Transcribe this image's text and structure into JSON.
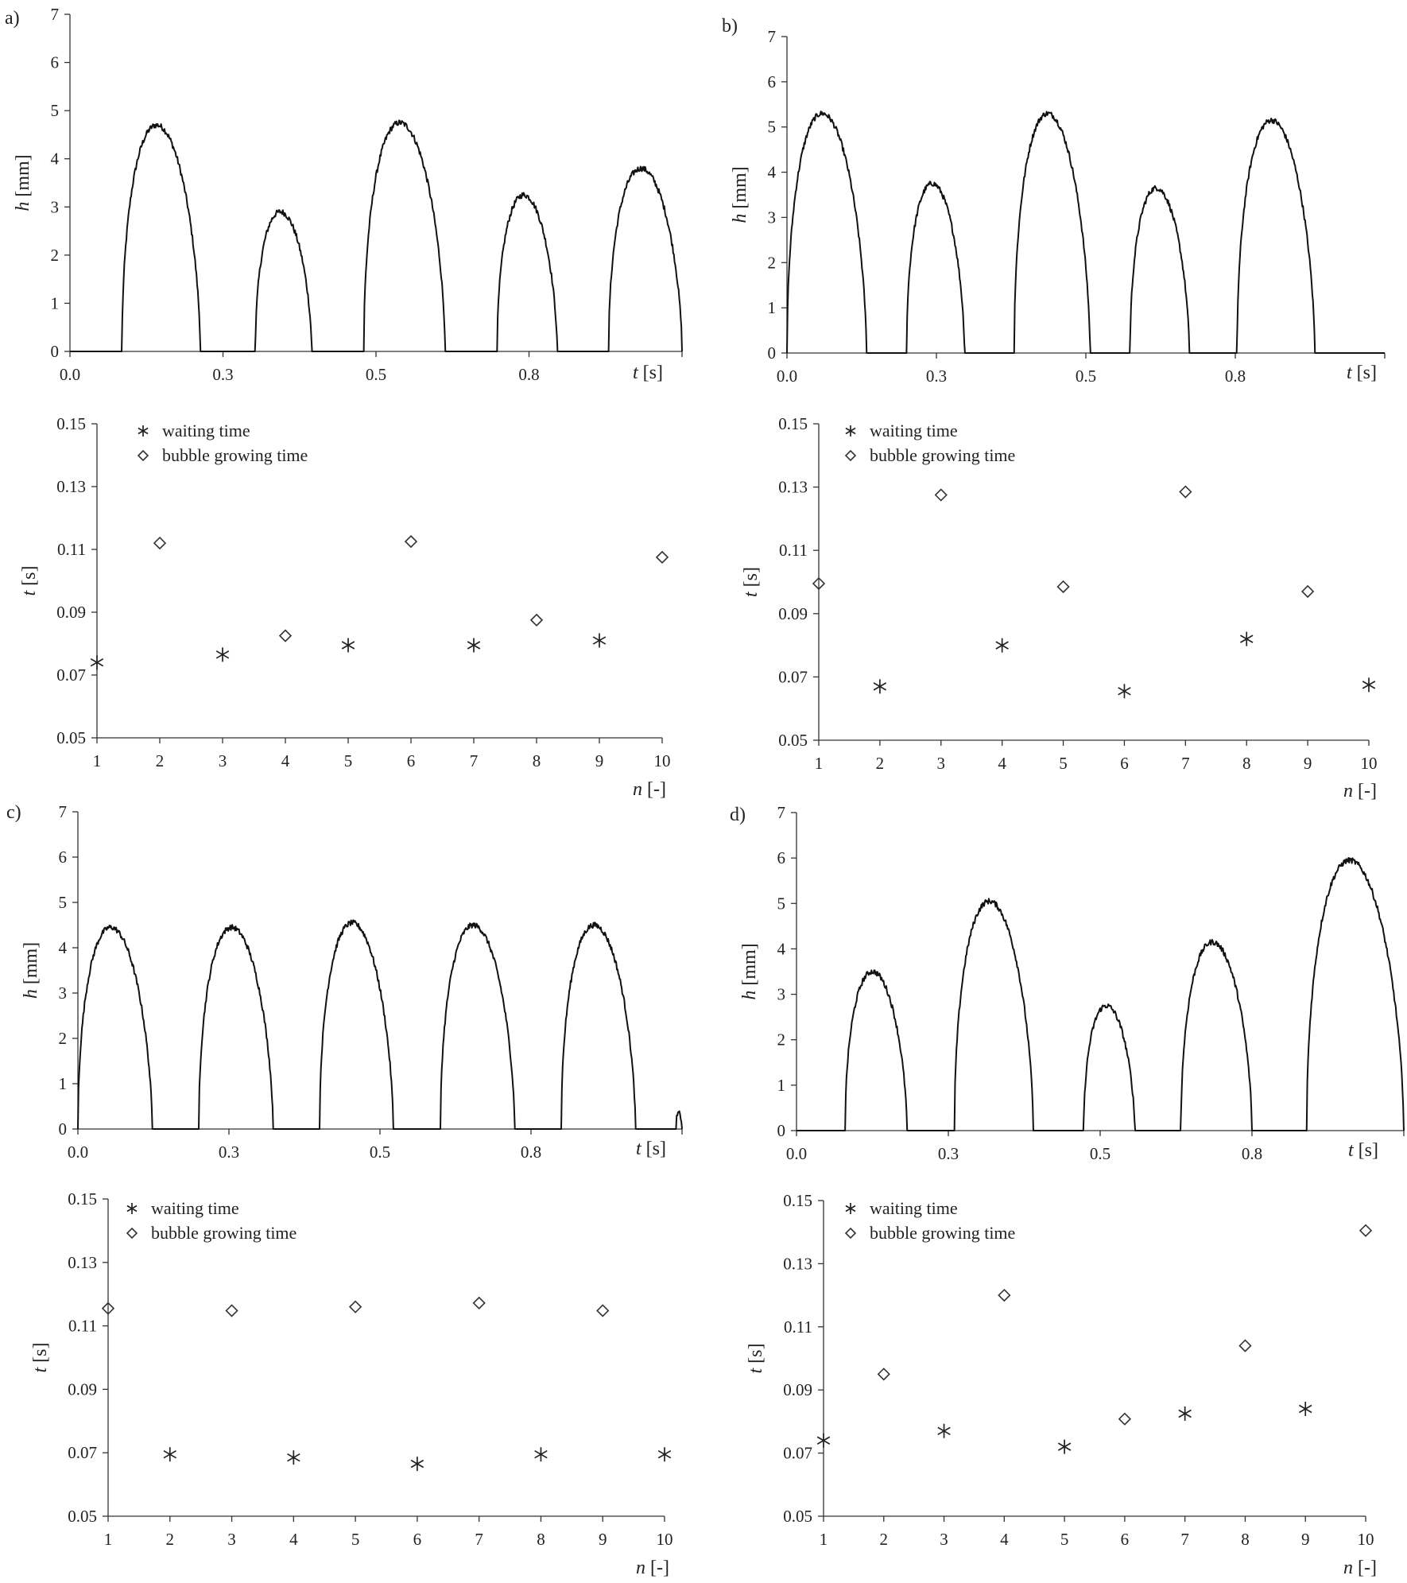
{
  "chart_data": [
    {
      "type": "line",
      "panel_label": "a)",
      "xlabel_var": "t",
      "xlabel_unit": " [s]",
      "ylabel_var": "h",
      "ylabel_unit": " [mm]",
      "xlim": [
        0,
        1.0
      ],
      "ylim": [
        0,
        7
      ],
      "x_ticks": [
        0.0,
        0.25,
        0.5,
        0.75
      ],
      "x_tick_labels": [
        "0.0",
        "0.3",
        "0.5",
        "0.8"
      ],
      "y_ticks": [
        0,
        1,
        2,
        3,
        4,
        5,
        6,
        7
      ],
      "y_tick_labels": [
        "0",
        "1",
        "2",
        "3",
        "4",
        "5",
        "6",
        "7"
      ],
      "series": [
        {
          "bubbles": [
            {
              "start": 0.085,
              "end": 0.213,
              "peak": 4.7
            },
            {
              "start": 0.303,
              "end": 0.395,
              "peak": 2.9
            },
            {
              "start": 0.48,
              "end": 0.613,
              "peak": 4.75
            },
            {
              "start": 0.698,
              "end": 0.796,
              "peak": 3.25
            },
            {
              "start": 0.88,
              "end": 1.0,
              "peak": 3.8
            }
          ]
        }
      ]
    },
    {
      "type": "scatter",
      "xlabel_var": "n",
      "xlabel_unit": " [-]",
      "ylabel_var": "t",
      "ylabel_unit": " [s]",
      "xlim": [
        1,
        10
      ],
      "ylim": [
        0.05,
        0.15
      ],
      "x_ticks": [
        1,
        2,
        3,
        4,
        5,
        6,
        7,
        8,
        9,
        10
      ],
      "x_tick_labels": [
        "1",
        "2",
        "3",
        "4",
        "5",
        "6",
        "7",
        "8",
        "9",
        "10"
      ],
      "y_ticks": [
        0.05,
        0.07,
        0.09,
        0.11,
        0.13,
        0.15
      ],
      "y_tick_labels": [
        "0.05",
        "0.07",
        "0.09",
        "0.11",
        "0.13",
        "0.15"
      ],
      "legend_position": "top-left",
      "series": [
        {
          "name": "waiting time",
          "marker": "asterisk",
          "x": [
            1,
            3,
            5,
            7,
            9
          ],
          "y": [
            0.074,
            0.0765,
            0.0795,
            0.0795,
            0.081
          ]
        },
        {
          "name": "bubble growing time",
          "marker": "diamond",
          "x": [
            2,
            4,
            6,
            8,
            10
          ],
          "y": [
            0.112,
            0.0825,
            0.1125,
            0.0875,
            0.1075
          ]
        }
      ]
    },
    {
      "type": "line",
      "panel_label": "b)",
      "xlabel_var": "t",
      "xlabel_unit": " [s]",
      "ylabel_var": "h",
      "ylabel_unit": " [mm]",
      "xlim": [
        0,
        1.0
      ],
      "ylim": [
        0,
        7
      ],
      "x_ticks": [
        0.0,
        0.25,
        0.5,
        0.75
      ],
      "x_tick_labels": [
        "0.0",
        "0.3",
        "0.5",
        "0.8"
      ],
      "y_ticks": [
        0,
        1,
        2,
        3,
        4,
        5,
        6,
        7
      ],
      "y_tick_labels": [
        "0",
        "1",
        "2",
        "3",
        "4",
        "5",
        "6",
        "7"
      ],
      "series": [
        {
          "bubbles": [
            {
              "start": 0.0,
              "end": 0.133,
              "peak": 5.3
            },
            {
              "start": 0.2,
              "end": 0.297,
              "peak": 3.75
            },
            {
              "start": 0.38,
              "end": 0.507,
              "peak": 5.3
            },
            {
              "start": 0.574,
              "end": 0.673,
              "peak": 3.65
            },
            {
              "start": 0.753,
              "end": 0.883,
              "peak": 5.15
            }
          ]
        }
      ]
    },
    {
      "type": "scatter",
      "xlabel_var": "n",
      "xlabel_unit": " [-]",
      "ylabel_var": "t",
      "ylabel_unit": " [s]",
      "xlim": [
        1,
        10
      ],
      "ylim": [
        0.05,
        0.15
      ],
      "x_ticks": [
        1,
        2,
        3,
        4,
        5,
        6,
        7,
        8,
        9,
        10
      ],
      "x_tick_labels": [
        "1",
        "2",
        "3",
        "4",
        "5",
        "6",
        "7",
        "8",
        "9",
        "10"
      ],
      "y_ticks": [
        0.05,
        0.07,
        0.09,
        0.11,
        0.13,
        0.15
      ],
      "y_tick_labels": [
        "0.05",
        "0.07",
        "0.09",
        "0.11",
        "0.13",
        "0.15"
      ],
      "legend_position": "top-left",
      "series": [
        {
          "name": "waiting time",
          "marker": "asterisk",
          "x": [
            2,
            4,
            6,
            8,
            10
          ],
          "y": [
            0.067,
            0.08,
            0.0655,
            0.082,
            0.0675
          ]
        },
        {
          "name": "bubble growing time",
          "marker": "diamond",
          "x": [
            1,
            3,
            5,
            7,
            9
          ],
          "y": [
            0.0995,
            0.1275,
            0.0985,
            0.1285,
            0.097
          ]
        }
      ]
    },
    {
      "type": "line",
      "panel_label": "c)",
      "xlabel_var": "t",
      "xlabel_unit": " [s]",
      "ylabel_var": "h",
      "ylabel_unit": " [mm]",
      "xlim": [
        0,
        1.0
      ],
      "ylim": [
        0,
        7
      ],
      "x_ticks": [
        0.0,
        0.25,
        0.5,
        0.75
      ],
      "x_tick_labels": [
        "0.0",
        "0.3",
        "0.5",
        "0.8"
      ],
      "y_ticks": [
        0,
        1,
        2,
        3,
        4,
        5,
        6,
        7
      ],
      "y_tick_labels": [
        "0",
        "1",
        "2",
        "3",
        "4",
        "5",
        "6",
        "7"
      ],
      "series": [
        {
          "bubbles": [
            {
              "start": 0.0,
              "end": 0.123,
              "peak": 4.45
            },
            {
              "start": 0.2,
              "end": 0.323,
              "peak": 4.45
            },
            {
              "start": 0.4,
              "end": 0.522,
              "peak": 4.55
            },
            {
              "start": 0.6,
              "end": 0.723,
              "peak": 4.5
            },
            {
              "start": 0.8,
              "end": 0.923,
              "peak": 4.5
            },
            {
              "start": 0.99,
              "end": 1.0,
              "peak": 0.35
            }
          ]
        }
      ]
    },
    {
      "type": "scatter",
      "xlabel_var": "n",
      "xlabel_unit": " [-]",
      "ylabel_var": "t",
      "ylabel_unit": " [s]",
      "xlim": [
        1,
        10
      ],
      "ylim": [
        0.05,
        0.15
      ],
      "x_ticks": [
        1,
        2,
        3,
        4,
        5,
        6,
        7,
        8,
        9,
        10
      ],
      "x_tick_labels": [
        "1",
        "2",
        "3",
        "4",
        "5",
        "6",
        "7",
        "8",
        "9",
        "10"
      ],
      "y_ticks": [
        0.05,
        0.07,
        0.09,
        0.11,
        0.13,
        0.15
      ],
      "y_tick_labels": [
        "0.05",
        "0.07",
        "0.09",
        "0.11",
        "0.13",
        "0.15"
      ],
      "legend_position": "top-left",
      "series": [
        {
          "name": "waiting time",
          "marker": "asterisk",
          "x": [
            2,
            4,
            6,
            8,
            10
          ],
          "y": [
            0.0695,
            0.0685,
            0.0665,
            0.0695,
            0.0695
          ]
        },
        {
          "name": "bubble growing time",
          "marker": "diamond",
          "x": [
            1,
            3,
            5,
            7,
            9
          ],
          "y": [
            0.1155,
            0.1148,
            0.116,
            0.1172,
            0.1148
          ]
        }
      ]
    },
    {
      "type": "line",
      "panel_label": "d)",
      "xlabel_var": "t",
      "xlabel_unit": " [s]",
      "ylabel_var": "h",
      "ylabel_unit": " [mm]",
      "xlim": [
        0,
        1.0
      ],
      "ylim": [
        0,
        7
      ],
      "x_ticks": [
        0.0,
        0.25,
        0.5,
        0.75
      ],
      "x_tick_labels": [
        "0.0",
        "0.3",
        "0.5",
        "0.8"
      ],
      "y_ticks": [
        0,
        1,
        2,
        3,
        4,
        5,
        6,
        7
      ],
      "y_tick_labels": [
        "0",
        "1",
        "2",
        "3",
        "4",
        "5",
        "6",
        "7"
      ],
      "series": [
        {
          "bubbles": [
            {
              "start": 0.08,
              "end": 0.182,
              "peak": 3.5
            },
            {
              "start": 0.26,
              "end": 0.39,
              "peak": 5.05
            },
            {
              "start": 0.473,
              "end": 0.557,
              "peak": 2.75
            },
            {
              "start": 0.633,
              "end": 0.75,
              "peak": 4.15
            },
            {
              "start": 0.84,
              "end": 1.0,
              "peak": 5.95
            }
          ]
        }
      ]
    },
    {
      "type": "scatter",
      "xlabel_var": "n",
      "xlabel_unit": " [-]",
      "ylabel_var": "t",
      "ylabel_unit": " [s]",
      "xlim": [
        1,
        10
      ],
      "ylim": [
        0.05,
        0.15
      ],
      "x_ticks": [
        1,
        2,
        3,
        4,
        5,
        6,
        7,
        8,
        9,
        10
      ],
      "x_tick_labels": [
        "1",
        "2",
        "3",
        "4",
        "5",
        "6",
        "7",
        "8",
        "9",
        "10"
      ],
      "y_ticks": [
        0.05,
        0.07,
        0.09,
        0.11,
        0.13,
        0.15
      ],
      "y_tick_labels": [
        "0.05",
        "0.07",
        "0.09",
        "0.11",
        "0.13",
        "0.15"
      ],
      "legend_position": "top-left",
      "series": [
        {
          "name": "waiting time",
          "marker": "asterisk",
          "x": [
            1,
            3,
            5,
            7,
            9
          ],
          "y": [
            0.074,
            0.077,
            0.072,
            0.0825,
            0.084
          ]
        },
        {
          "name": "bubble growing time",
          "marker": "diamond",
          "x": [
            2,
            4,
            6,
            8,
            10
          ],
          "y": [
            0.095,
            0.12,
            0.0808,
            0.104,
            0.1405
          ]
        }
      ]
    }
  ]
}
